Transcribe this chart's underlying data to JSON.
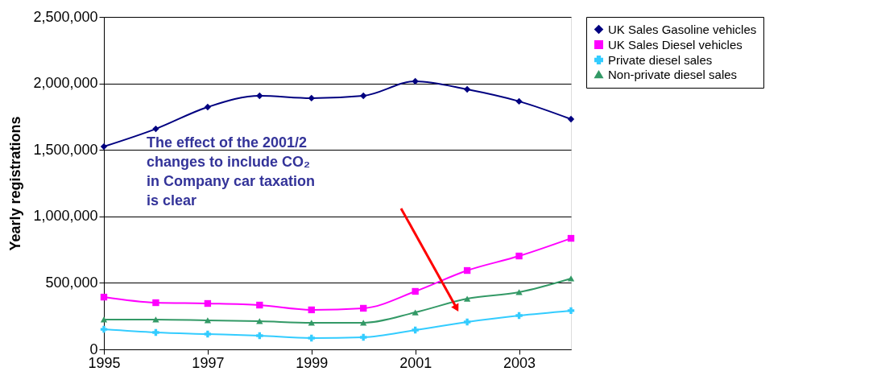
{
  "chart_data": {
    "type": "line",
    "ylabel": "Yearly registrations",
    "x": [
      1995,
      1996,
      1997,
      1998,
      1999,
      2000,
      2001,
      2002,
      2003,
      2004
    ],
    "series": [
      {
        "name": "UK Sales Gasoline vehicles",
        "color": "#000080",
        "marker": "diamond",
        "values": [
          1525000,
          1658000,
          1822000,
          1907000,
          1889000,
          1907000,
          2016000,
          1955000,
          1865000,
          1731000
        ]
      },
      {
        "name": "UK Sales Diesel vehicles",
        "color": "#ff00ff",
        "marker": "square",
        "values": [
          393000,
          351000,
          345000,
          333000,
          297000,
          309000,
          436000,
          593000,
          702000,
          835000
        ]
      },
      {
        "name": "Private diesel sales",
        "color": "#33ccff",
        "marker": "cross",
        "values": [
          151000,
          127000,
          115000,
          103000,
          85000,
          91000,
          145000,
          206000,
          254000,
          291000
        ]
      },
      {
        "name": "Non-private diesel sales",
        "color": "#339966",
        "marker": "triangle",
        "values": [
          224000,
          224000,
          218000,
          212000,
          200000,
          200000,
          278000,
          381000,
          430000,
          533000
        ]
      }
    ],
    "xlim": [
      1995,
      2004
    ],
    "xticks": [
      1995,
      1997,
      1999,
      2001,
      2003
    ],
    "ylim": [
      0,
      2500000
    ],
    "yticks": [
      0,
      {
        "value": 500000,
        "label": "500,000"
      },
      {
        "value": 1000000,
        "label": "1,000,000"
      },
      {
        "value": 1500000,
        "label": "1,500,000"
      },
      {
        "value": 2000000,
        "label": "2,000,000"
      },
      {
        "value": 2500000,
        "label": "2,500,000"
      }
    ],
    "grid": "y",
    "legend": "right",
    "line_style": "solid",
    "annotations": [
      "The effect of the 2001/2\nchanges to include CO₂\nin Company car taxation\nis clear"
    ]
  }
}
